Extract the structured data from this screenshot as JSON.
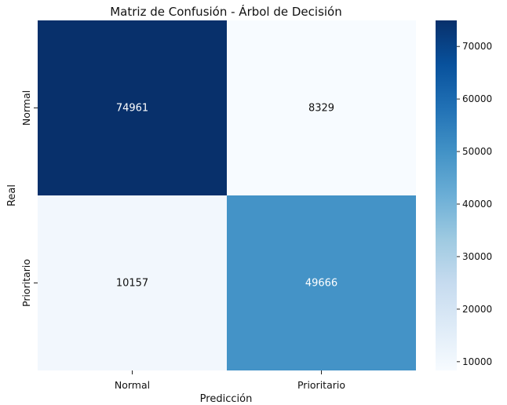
{
  "chart_data": {
    "type": "heatmap",
    "title": "Matriz de Confusión - Árbol de Decisión",
    "xlabel": "Predicción",
    "ylabel": "Real",
    "x_categories": [
      "Normal",
      "Prioritario"
    ],
    "y_categories": [
      "Normal",
      "Prioritario"
    ],
    "matrix": [
      [
        74961,
        8329
      ],
      [
        10157,
        49666
      ]
    ],
    "colormap": "Blues",
    "colorbar": {
      "min": 8329,
      "max": 74961,
      "ticks": [
        10000,
        20000,
        30000,
        40000,
        50000,
        60000,
        70000
      ],
      "tick_labels": [
        "10000",
        "20000",
        "30000",
        "40000",
        "50000",
        "60000",
        "70000"
      ]
    },
    "colors": {
      "low": "#f7fbff",
      "high": "#08306b"
    }
  }
}
